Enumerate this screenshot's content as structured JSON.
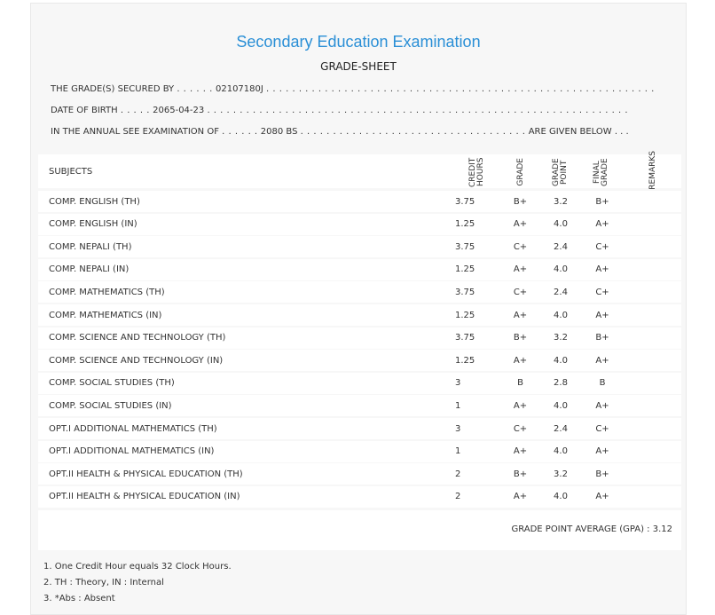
{
  "header": {
    "title": "Secondary Education Examination",
    "subtitle": "GRADE-SHEET"
  },
  "student": {
    "grades_prefix": "THE GRADE(S) SECURED BY",
    "grades_dots_before": ". . . . . .",
    "symbol_no": "02107180J",
    "grades_dots_after": ". . . . . . . . . . . . . . . . . . . . . . . . . . . . . . . . . . . . . . . . . . . . . . . . . . . . . . . . . . . .",
    "dob_prefix": "DATE OF BIRTH",
    "dob_dots_before": ". . . . .",
    "dob": "2065-04-23",
    "dob_dots_after": ". . . . . . . . . . . . . . . . . . . . . . . . . . . . . . . . . . . . . . . . . . . . . . . . . . . . . . . . . . . . . . . . .",
    "exam_prefix": "IN THE ANNUAL SEE EXAMINATION OF",
    "exam_dots_before": ". . . . . .",
    "exam_year": "2080 BS",
    "exam_dots_after": ". . . . . . . . . . . . . . . . . . . . . . . . . . . . . . . . . . .",
    "exam_suffix": "ARE GIVEN BELOW . . ."
  },
  "table": {
    "headers": {
      "subjects": "SUBJECTS",
      "credit_hours": "CREDIT HOURS",
      "grade": "GRADE",
      "grade_point": "GRADE POINT",
      "final_grade": "FINAL GRADE",
      "remarks": "REMARKS"
    },
    "rows": [
      {
        "subject": "COMP. ENGLISH (TH)",
        "credit": "3.75",
        "grade": "B+",
        "point": "3.2",
        "final": "B+",
        "remarks": ""
      },
      {
        "subject": "COMP. ENGLISH (IN)",
        "credit": "1.25",
        "grade": "A+",
        "point": "4.0",
        "final": "A+",
        "remarks": ""
      },
      {
        "subject": "COMP. NEPALI (TH)",
        "credit": "3.75",
        "grade": "C+",
        "point": "2.4",
        "final": "C+",
        "remarks": ""
      },
      {
        "subject": "COMP. NEPALI (IN)",
        "credit": "1.25",
        "grade": "A+",
        "point": "4.0",
        "final": "A+",
        "remarks": ""
      },
      {
        "subject": "COMP. MATHEMATICS (TH)",
        "credit": "3.75",
        "grade": "C+",
        "point": "2.4",
        "final": "C+",
        "remarks": ""
      },
      {
        "subject": "COMP. MATHEMATICS (IN)",
        "credit": "1.25",
        "grade": "A+",
        "point": "4.0",
        "final": "A+",
        "remarks": ""
      },
      {
        "subject": "COMP. SCIENCE AND TECHNOLOGY (TH)",
        "credit": "3.75",
        "grade": "B+",
        "point": "3.2",
        "final": "B+",
        "remarks": ""
      },
      {
        "subject": "COMP. SCIENCE AND TECHNOLOGY (IN)",
        "credit": "1.25",
        "grade": "A+",
        "point": "4.0",
        "final": "A+",
        "remarks": ""
      },
      {
        "subject": "COMP. SOCIAL STUDIES (TH)",
        "credit": "3",
        "grade": "B",
        "point": "2.8",
        "final": "B",
        "remarks": ""
      },
      {
        "subject": "COMP. SOCIAL STUDIES (IN)",
        "credit": "1",
        "grade": "A+",
        "point": "4.0",
        "final": "A+",
        "remarks": ""
      },
      {
        "subject": "OPT.I ADDITIONAL MATHEMATICS (TH)",
        "credit": "3",
        "grade": "C+",
        "point": "2.4",
        "final": "C+",
        "remarks": ""
      },
      {
        "subject": "OPT.I ADDITIONAL MATHEMATICS (IN)",
        "credit": "1",
        "grade": "A+",
        "point": "4.0",
        "final": "A+",
        "remarks": ""
      },
      {
        "subject": "OPT.II HEALTH & PHYSICAL EDUCATION (TH)",
        "credit": "2",
        "grade": "B+",
        "point": "3.2",
        "final": "B+",
        "remarks": ""
      },
      {
        "subject": "OPT.II HEALTH & PHYSICAL EDUCATION (IN)",
        "credit": "2",
        "grade": "A+",
        "point": "4.0",
        "final": "A+",
        "remarks": ""
      }
    ]
  },
  "summary": {
    "gpa_label": "GRADE POINT AVERAGE (GPA) : 3.12"
  },
  "notes": [
    "1. One Credit Hour equals 32 Clock Hours.",
    "2. TH : Theory, IN : Internal",
    "3. *Abs : Absent"
  ],
  "colors": {
    "title": "#2a8fd6",
    "panel": "#f7f7f7",
    "row": "#ffffff"
  }
}
